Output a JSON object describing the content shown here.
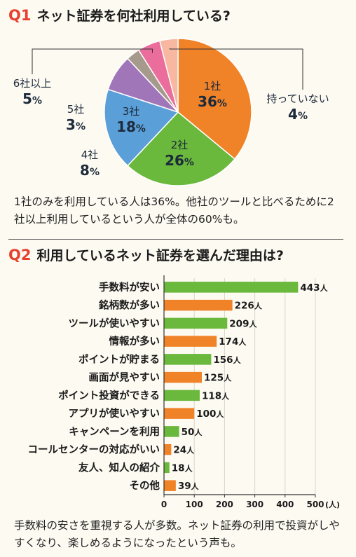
{
  "q1": {
    "num": "Q1",
    "title": "ネット証券を何社利用している?",
    "text": "1社のみを利用している人は36%。他社のツールと比べるために2社以上利用しているという人が全体の60%も。"
  },
  "q2": {
    "num": "Q2",
    "title": "利用しているネット証券を選んだ理由は?",
    "text": "手数料の安さを重視する人が多数。ネット証券の利用で投資がしやすくなり、楽しめるようになったという声も。"
  },
  "chart_data": [
    {
      "type": "pie",
      "pct_symbol": "%",
      "slices": [
        {
          "label": "1社",
          "value": 36,
          "color": "#f08228"
        },
        {
          "label": "2社",
          "value": 26,
          "color": "#6ab83c"
        },
        {
          "label": "3社",
          "value": 18,
          "color": "#5b9fd8"
        },
        {
          "label": "4社",
          "value": 8,
          "color": "#a176b8"
        },
        {
          "label": "5社",
          "value": 3,
          "color": "#a59a8c"
        },
        {
          "label": "6社以上",
          "value": 5,
          "color": "#ea6d9c"
        },
        {
          "label": "持っていない",
          "value": 4,
          "color": "#f7b7a0"
        }
      ]
    },
    {
      "type": "bar",
      "orientation": "horizontal",
      "categories": [
        "手数料が安い",
        "銘柄数が多い",
        "ツールが使いやすい",
        "情報が多い",
        "ポイントが貯まる",
        "画面が見やすい",
        "ポイント投資ができる",
        "アプリが使いやすい",
        "キャンペーンを利用",
        "コールセンターの対応がいい",
        "友人、知人の紹介",
        "その他"
      ],
      "values": [
        443,
        226,
        209,
        174,
        156,
        125,
        118,
        100,
        50,
        24,
        18,
        39
      ],
      "colors": [
        "#6ab83c",
        "#f08228",
        "#6ab83c",
        "#f08228",
        "#6ab83c",
        "#f08228",
        "#6ab83c",
        "#f08228",
        "#6ab83c",
        "#f08228",
        "#6ab83c",
        "#f08228"
      ],
      "value_unit": "人",
      "xlim": [
        0,
        500
      ],
      "xticks": [
        0,
        100,
        200,
        300,
        400,
        500
      ],
      "xaxis_unit": "(人)"
    }
  ]
}
